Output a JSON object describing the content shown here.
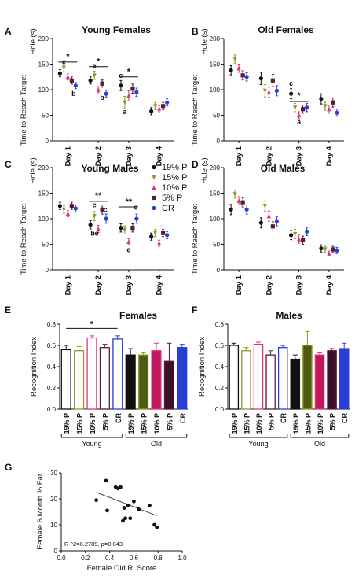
{
  "colors": {
    "p19": "#111111",
    "p15": "#8a9a2a",
    "p10": "#e0337a",
    "p5": "#5a1a3a",
    "cr": "#2a3fd6"
  },
  "legend": [
    {
      "label": "19% P",
      "marker": "circle",
      "color": "#111111"
    },
    {
      "label": "15% P",
      "marker": "triangle-down",
      "color": "#8a9a2a"
    },
    {
      "label": "10% P",
      "marker": "triangle-up",
      "color": "#e0337a"
    },
    {
      "label": "5% P",
      "marker": "square",
      "color": "#5a1a3a"
    },
    {
      "label": "CR",
      "marker": "circle",
      "color": "#2a3fd6"
    }
  ],
  "chart_data": [
    {
      "panel": "A",
      "type": "scatter",
      "title": "Young Females",
      "ylabel_top": "Hole (s)",
      "ylabel": "Time to Reach Target",
      "categories": [
        "Day 1",
        "Day 2",
        "Day 3",
        "Day 4"
      ],
      "yticks": [
        "0",
        "50",
        "100",
        "150",
        "200"
      ],
      "ylim": [
        0,
        200
      ],
      "series": [
        {
          "key": "p19",
          "values": [
            132,
            118,
            108,
            58
          ],
          "errors": [
            7,
            7,
            10,
            7
          ]
        },
        {
          "key": "p15",
          "values": [
            143,
            128,
            75,
            68
          ],
          "errors": [
            8,
            8,
            12,
            7
          ]
        },
        {
          "key": "p10",
          "values": [
            125,
            100,
            88,
            63
          ],
          "errors": [
            6,
            6,
            10,
            6
          ]
        },
        {
          "key": "p5",
          "values": [
            118,
            112,
            102,
            68
          ],
          "errors": [
            7,
            7,
            9,
            7
          ]
        },
        {
          "key": "cr",
          "values": [
            108,
            92,
            95,
            75
          ],
          "errors": [
            6,
            7,
            8,
            7
          ]
        }
      ],
      "annotations": [
        {
          "text": "*",
          "day": 0,
          "y": 160
        },
        {
          "text": "e",
          "day": 0,
          "offset": 1,
          "y": 150
        },
        {
          "text": "b",
          "day": 0,
          "offset": 3.5,
          "y": 88
        },
        {
          "text": "*",
          "day": 1,
          "y": 150
        },
        {
          "text": "e",
          "day": 1,
          "offset": 1,
          "y": 142
        },
        {
          "text": "b",
          "day": 1,
          "offset": 3,
          "y": 80
        },
        {
          "text": "*",
          "day": 2,
          "y": 130
        },
        {
          "text": "e",
          "day": 2,
          "offset": 0,
          "y": 123
        },
        {
          "text": "a",
          "day": 2,
          "offset": 1,
          "y": 52
        }
      ],
      "brackets": [
        {
          "from": 0,
          "from_offset": 0,
          "to": 0,
          "to_offset": 4,
          "y": 154
        },
        {
          "from": 1,
          "from_offset": 0,
          "to": 1,
          "to_offset": 4,
          "y": 145
        },
        {
          "from": 2,
          "from_offset": 0,
          "to": 2,
          "to_offset": 4,
          "y": 125
        }
      ]
    },
    {
      "panel": "B",
      "type": "scatter",
      "title": "Old Females",
      "ylabel_top": "Hole (s)",
      "ylabel": "Time to Reach Target",
      "categories": [
        "Day 1",
        "Day 2",
        "Day 3",
        "Day 4"
      ],
      "yticks": [
        "0",
        "50",
        "100",
        "150",
        "200"
      ],
      "ylim": [
        0,
        200
      ],
      "series": [
        {
          "key": "p19",
          "values": [
            138,
            122,
            92,
            82
          ],
          "errors": [
            9,
            12,
            10,
            10
          ]
        },
        {
          "key": "p15",
          "values": [
            160,
            98,
            65,
            68
          ],
          "errors": [
            8,
            12,
            8,
            8
          ]
        },
        {
          "key": "p10",
          "values": [
            142,
            95,
            50,
            62
          ],
          "errors": [
            8,
            10,
            7,
            8
          ]
        },
        {
          "key": "p5",
          "values": [
            128,
            118,
            62,
            75
          ],
          "errors": [
            9,
            12,
            8,
            9
          ]
        },
        {
          "key": "cr",
          "values": [
            125,
            98,
            65,
            55
          ],
          "errors": [
            8,
            10,
            8,
            7
          ]
        }
      ],
      "annotations": [
        {
          "text": "*",
          "day": 2,
          "y": 83
        },
        {
          "text": "c",
          "day": 2,
          "offset": 0,
          "y": 108
        },
        {
          "text": "a",
          "day": 2,
          "offset": 2,
          "y": 32
        }
      ],
      "brackets": [
        {
          "from": 2,
          "from_offset": 0,
          "to": 2,
          "to_offset": 4,
          "y": 77
        }
      ]
    },
    {
      "panel": "C",
      "type": "scatter",
      "title": "Young Males",
      "ylabel_top": "Hole (s)",
      "ylabel": "Time to Reach Target",
      "categories": [
        "Day 1",
        "Day 2",
        "Day 3",
        "Day 4"
      ],
      "yticks": [
        "0",
        "50",
        "100",
        "150",
        "200"
      ],
      "ylim": [
        0,
        200
      ],
      "series": [
        {
          "key": "p19",
          "values": [
            125,
            88,
            82,
            65
          ],
          "errors": [
            7,
            8,
            8,
            7
          ]
        },
        {
          "key": "p15",
          "values": [
            118,
            105,
            78,
            72
          ],
          "errors": [
            7,
            9,
            8,
            7
          ]
        },
        {
          "key": "p10",
          "values": [
            110,
            80,
            55,
            52
          ],
          "errors": [
            6,
            7,
            6,
            6
          ]
        },
        {
          "key": "p5",
          "values": [
            125,
            118,
            82,
            72
          ],
          "errors": [
            7,
            9,
            8,
            7
          ]
        },
        {
          "key": "cr",
          "values": [
            120,
            100,
            100,
            68
          ],
          "errors": [
            7,
            9,
            9,
            7
          ]
        }
      ],
      "annotations": [
        {
          "text": "**",
          "day": 1,
          "y": 140
        },
        {
          "text": "c",
          "day": 1,
          "offset": 1,
          "y": 122
        },
        {
          "text": "c",
          "day": 1,
          "offset": 3.8,
          "y": 113
        },
        {
          "text": "b",
          "day": 1,
          "offset": 0.6,
          "y": 67
        },
        {
          "text": "e",
          "day": 1,
          "offset": 1.6,
          "y": 67
        },
        {
          "text": "**",
          "day": 2,
          "y": 128
        },
        {
          "text": "c",
          "day": 2,
          "offset": 3.8,
          "y": 118
        },
        {
          "text": "e",
          "day": 2,
          "offset": 2,
          "y": 35
        }
      ],
      "brackets": [
        {
          "from": 1,
          "from_offset": 0,
          "to": 1,
          "to_offset": 4,
          "y": 134
        },
        {
          "from": 2,
          "from_offset": 0,
          "to": 2,
          "to_offset": 4,
          "y": 123
        }
      ]
    },
    {
      "panel": "D",
      "type": "scatter",
      "title": "Old Males",
      "ylabel_top": "Hole (s)",
      "ylabel": "Time to Reach Target",
      "categories": [
        "Day 1",
        "Day 2",
        "Day 3",
        "Day 4"
      ],
      "yticks": [
        "0",
        "50",
        "100",
        "150",
        "200"
      ],
      "ylim": [
        0,
        200
      ],
      "series": [
        {
          "key": "p19",
          "values": [
            118,
            92,
            68,
            42
          ],
          "errors": [
            10,
            10,
            9,
            7
          ]
        },
        {
          "key": "p15",
          "values": [
            148,
            125,
            70,
            40
          ],
          "errors": [
            8,
            10,
            9,
            6
          ]
        },
        {
          "key": "p10",
          "values": [
            135,
            105,
            60,
            32
          ],
          "errors": [
            8,
            10,
            8,
            5
          ]
        },
        {
          "key": "p5",
          "values": [
            132,
            85,
            58,
            40
          ],
          "errors": [
            9,
            9,
            8,
            6
          ]
        },
        {
          "key": "cr",
          "values": [
            118,
            95,
            75,
            38
          ],
          "errors": [
            9,
            9,
            8,
            6
          ]
        }
      ],
      "annotations": [],
      "brackets": []
    },
    {
      "panel": "E",
      "type": "bar",
      "title": "Females",
      "ylabel": "Recognition Index",
      "categories": [
        "19% P",
        "15% P",
        "10% P",
        "5% P",
        "CR",
        "19% P",
        "15% P",
        "10% P",
        "5% P",
        "CR"
      ],
      "yticks": [
        "0.0",
        "0.2",
        "0.4",
        "0.6",
        "0.8"
      ],
      "ylim": [
        0,
        0.8
      ],
      "values": [
        0.56,
        0.55,
        0.67,
        0.58,
        0.66,
        0.51,
        0.51,
        0.55,
        0.45,
        0.58
      ],
      "errors": [
        0.04,
        0.04,
        0.02,
        0.03,
        0.03,
        0.06,
        0.02,
        0.07,
        0.17,
        0.03
      ],
      "keys": [
        "p19",
        "p15",
        "p10",
        "p5",
        "cr",
        "p19",
        "p15",
        "p10",
        "p5",
        "cr"
      ],
      "groups": [
        {
          "label": "Young",
          "from": 0,
          "to": 4
        },
        {
          "label": "Old",
          "from": 5,
          "to": 9
        }
      ],
      "significance": [
        {
          "text": "*",
          "from": 0,
          "to": 4,
          "y": 0.76
        }
      ]
    },
    {
      "panel": "F",
      "type": "bar",
      "title": "Males",
      "ylabel": "Recognition Index",
      "categories": [
        "19% P",
        "15% P",
        "10% P",
        "5% P",
        "CR",
        "19% P",
        "15% P",
        "10% P",
        "5% P",
        "CR"
      ],
      "yticks": [
        "0.0",
        "0.2",
        "0.4",
        "0.6",
        "0.8"
      ],
      "ylim": [
        0,
        0.8
      ],
      "values": [
        0.6,
        0.55,
        0.61,
        0.51,
        0.58,
        0.47,
        0.6,
        0.51,
        0.55,
        0.57
      ],
      "errors": [
        0.02,
        0.03,
        0.02,
        0.04,
        0.02,
        0.04,
        0.13,
        0.02,
        0.02,
        0.05
      ],
      "keys": [
        "p19",
        "p15",
        "p10",
        "p5",
        "cr",
        "p19",
        "p15",
        "p10",
        "p5",
        "cr"
      ],
      "groups": [
        {
          "label": "Young",
          "from": 0,
          "to": 4
        },
        {
          "label": "Old",
          "from": 5,
          "to": 9
        }
      ],
      "significance": []
    },
    {
      "panel": "G",
      "type": "scatter",
      "xlabel": "Female Old RI  Score",
      "ylabel": "Female 6 Month % Fat",
      "xticks": [
        "0.0",
        "0.2",
        "0.4",
        "0.6",
        "0.8",
        "1.0"
      ],
      "yticks": [
        "0",
        "10",
        "20",
        "30"
      ],
      "xlim": [
        0,
        1
      ],
      "ylim": [
        0,
        30
      ],
      "x": [
        0.29,
        0.37,
        0.38,
        0.45,
        0.47,
        0.49,
        0.51,
        0.52,
        0.53,
        0.55,
        0.57,
        0.6,
        0.64,
        0.73,
        0.77,
        0.79
      ],
      "y": [
        19.5,
        27,
        15.5,
        24.5,
        24,
        24.5,
        11.5,
        16.5,
        12.5,
        17.5,
        12.5,
        19,
        16,
        17.5,
        10,
        9
      ],
      "fit": {
        "x": [
          0.29,
          0.79
        ],
        "y": [
          22.5,
          13.5
        ]
      },
      "annotation": "R ^2=0.2789, p=0.043"
    }
  ]
}
